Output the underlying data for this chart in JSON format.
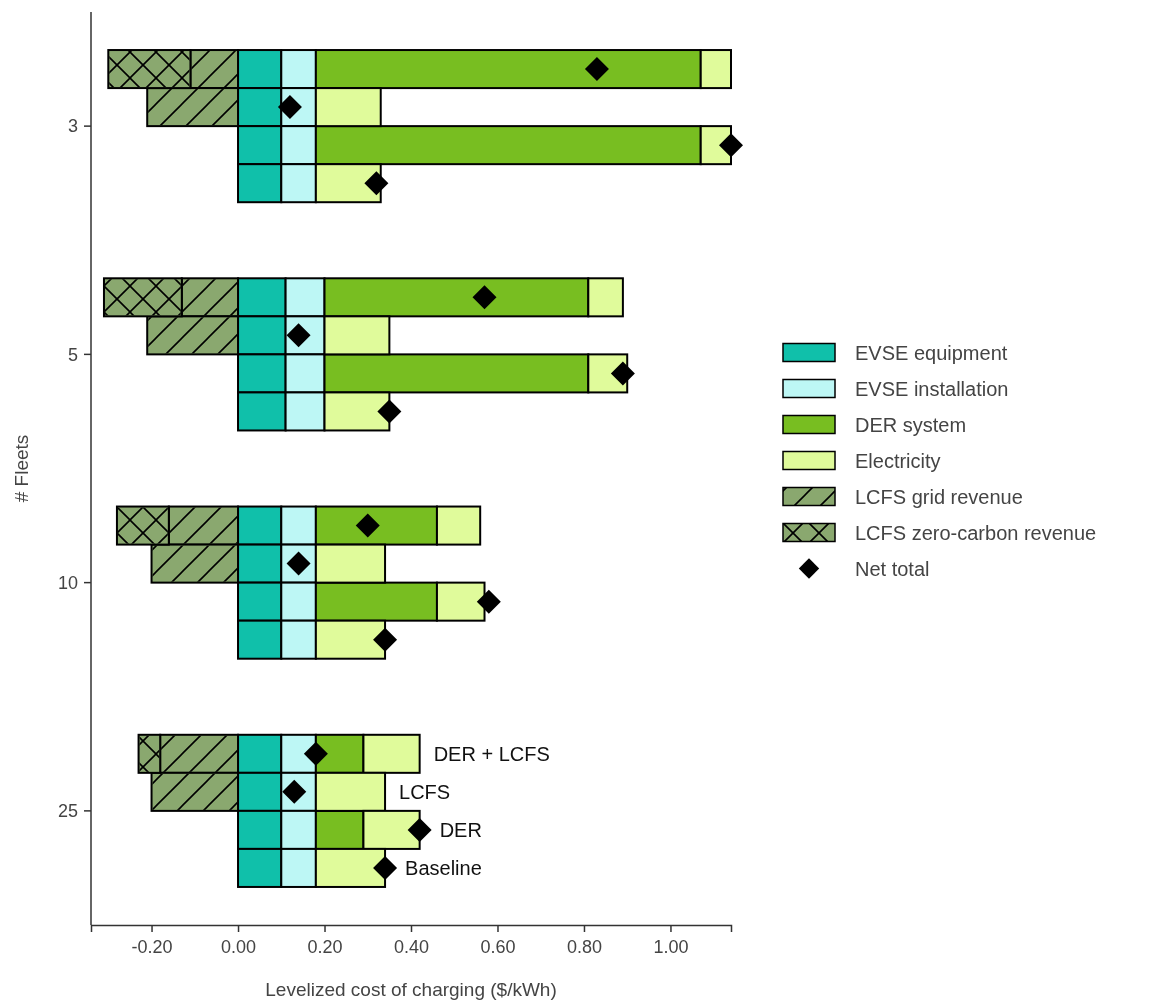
{
  "chart_data": {
    "type": "bar",
    "orientation": "horizontal",
    "stacked": true,
    "xlabel": "Levelized cost of charging ($/kWh)",
    "ylabel": "# Fleets",
    "categories": [
      null,
      null,
      null,
      null,
      null,
      null,
      null,
      null,
      null,
      null,
      null,
      null,
      null,
      null,
      null,
      null,
      null,
      null,
      null,
      null,
      null,
      null,
      null,
      null
    ],
    "xlim": [
      -0.34,
      1.14
    ],
    "xticks": [
      {
        "value": -0.2,
        "label": "-0.20"
      },
      {
        "value": 0,
        "label": "0.00"
      },
      {
        "value": 0.2,
        "label": "0.20"
      },
      {
        "value": 0.4,
        "label": "0.40"
      },
      {
        "value": 0.6,
        "label": "0.60"
      },
      {
        "value": 0.8,
        "label": "0.80"
      },
      {
        "value": 1.0,
        "label": "1.00"
      }
    ],
    "legend": "right",
    "grid": false,
    "series": [
      {
        "name": "EVSE equipment",
        "color": "#10c0aa",
        "values": [
          null,
          0.1,
          0.1,
          0.1,
          0.1,
          null,
          null,
          0.11,
          0.11,
          0.11,
          0.11,
          null,
          null,
          0.1,
          0.1,
          0.1,
          0.1,
          null,
          null,
          0.1,
          0.1,
          0.1,
          0.1,
          null
        ]
      },
      {
        "name": "EVSE installation",
        "color": "#bdf7f5",
        "values": [
          null,
          0.08,
          0.08,
          0.08,
          0.08,
          null,
          null,
          0.09,
          0.09,
          0.09,
          0.09,
          null,
          null,
          0.08,
          0.08,
          0.08,
          0.08,
          null,
          null,
          0.08,
          0.08,
          0.08,
          0.08,
          null
        ]
      },
      {
        "name": "DER system",
        "color": "#78be21",
        "values": [
          null,
          0.89,
          null,
          0.89,
          null,
          null,
          null,
          0.61,
          null,
          0.61,
          null,
          null,
          null,
          0.28,
          null,
          0.28,
          null,
          null,
          null,
          0.11,
          null,
          0.11,
          null,
          null
        ]
      },
      {
        "name": "Electricity",
        "color": "#e0fb9b",
        "values": [
          null,
          0.07,
          0.15,
          0.07,
          0.15,
          null,
          null,
          0.08,
          0.15,
          0.09,
          0.15,
          null,
          null,
          0.1,
          0.16,
          0.11,
          0.16,
          null,
          null,
          0.13,
          0.16,
          0.13,
          0.16,
          null
        ]
      },
      {
        "name": "LCFS grid revenue",
        "color": "#8aa86f",
        "values": [
          null,
          -0.11,
          -0.21,
          null,
          null,
          null,
          null,
          -0.13,
          -0.21,
          null,
          null,
          null,
          null,
          -0.16,
          -0.2,
          null,
          null,
          null,
          null,
          -0.18,
          -0.2,
          null,
          null,
          null
        ]
      },
      {
        "name": "LCFS zero-carbon revenue",
        "color": "#8aa86f",
        "values": [
          null,
          -0.19,
          null,
          null,
          null,
          null,
          null,
          -0.18,
          null,
          null,
          null,
          null,
          null,
          -0.12,
          null,
          null,
          null,
          null,
          null,
          -0.05,
          null,
          null,
          null,
          null
        ]
      },
      {
        "name": "Net total",
        "type": "scatter",
        "marker": "diamond",
        "color": "#000000",
        "values": [
          null,
          0.83,
          0.12,
          1.14,
          0.32,
          null,
          null,
          0.57,
          0.14,
          0.89,
          0.35,
          null,
          null,
          0.3,
          0.14,
          0.58,
          0.34,
          null,
          null,
          0.18,
          0.13,
          0.42,
          0.34,
          null
        ]
      }
    ],
    "annotations": [
      "3",
      "5",
      "10",
      "25",
      "DER + LCFS",
      "LCFS",
      "DER",
      "Baseline"
    ]
  }
}
